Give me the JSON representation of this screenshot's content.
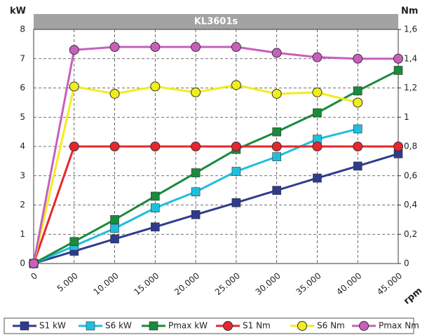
{
  "chart_data": {
    "type": "line",
    "title": "KL3601s",
    "ylabel": "kW",
    "y2label": "Nm",
    "xlabel": "rpm",
    "x": [
      0,
      5000,
      10000,
      15000,
      20000,
      25000,
      30000,
      35000,
      40000,
      45000
    ],
    "xlim": [
      0,
      45000
    ],
    "xticks": [
      0,
      {
        "value": 5000,
        "label": "5.000"
      },
      {
        "value": 10000,
        "label": "10.000"
      },
      {
        "value": 15000,
        "label": "15.000"
      },
      {
        "value": 20000,
        "label": "20.000"
      },
      {
        "value": 25000,
        "label": "25.000"
      },
      {
        "value": 30000,
        "label": "30.000"
      },
      {
        "value": 35000,
        "label": "35.000"
      },
      {
        "value": 40000,
        "label": "40.000"
      },
      {
        "value": 45000,
        "label": "45.000"
      }
    ],
    "ylim": [
      0,
      8
    ],
    "yticks": [
      0,
      1,
      2,
      3,
      4,
      5,
      6,
      7,
      8
    ],
    "y2lim": [
      0,
      1.6
    ],
    "y2ticks": [
      0,
      {
        "value": 0.2,
        "label": "0,2"
      },
      {
        "value": 0.4,
        "label": "0,4"
      },
      {
        "value": 0.6,
        "label": "0,6"
      },
      {
        "value": 0.8,
        "label": "0,8"
      },
      1,
      {
        "value": 1.2,
        "label": "1,2"
      },
      {
        "value": 1.4,
        "label": "1,4"
      },
      {
        "value": 1.6,
        "label": "1,6"
      }
    ],
    "grid": true,
    "legend": "bottom",
    "series": [
      {
        "name": "S1 kW",
        "color": "#2e3b8f",
        "marker": "square",
        "values": [
          0,
          0.42,
          0.84,
          1.25,
          1.67,
          2.08,
          2.5,
          2.92,
          3.33,
          3.75
        ]
      },
      {
        "name": "S6 kW",
        "color": "#1ebfdc",
        "marker": "square",
        "values": [
          0,
          0.6,
          1.2,
          1.9,
          2.45,
          3.15,
          3.65,
          4.25,
          4.6,
          null
        ]
      },
      {
        "name": "Pmax kW",
        "color": "#1a8a3c",
        "marker": "square",
        "values": [
          0,
          0.75,
          1.5,
          2.3,
          3.1,
          3.9,
          4.5,
          5.15,
          5.9,
          6.6
        ]
      },
      {
        "name": "S1 Nm",
        "color": "#e8262b",
        "marker": "circle",
        "axis": "y2",
        "values": [
          0,
          0.8,
          0.8,
          0.8,
          0.8,
          0.8,
          0.8,
          0.8,
          0.8,
          0.8
        ]
      },
      {
        "name": "S6 Nm",
        "color": "#f0ee1a",
        "marker": "circle",
        "axis": "y2",
        "values": [
          0,
          1.21,
          1.16,
          1.21,
          1.17,
          1.22,
          1.16,
          1.17,
          1.1,
          null
        ]
      },
      {
        "name": "Pmax Nm",
        "color": "#c85fbd",
        "marker": "circle",
        "axis": "y2",
        "values": [
          0,
          1.46,
          1.48,
          1.48,
          1.48,
          1.48,
          1.44,
          1.41,
          1.4,
          1.4
        ]
      }
    ]
  }
}
